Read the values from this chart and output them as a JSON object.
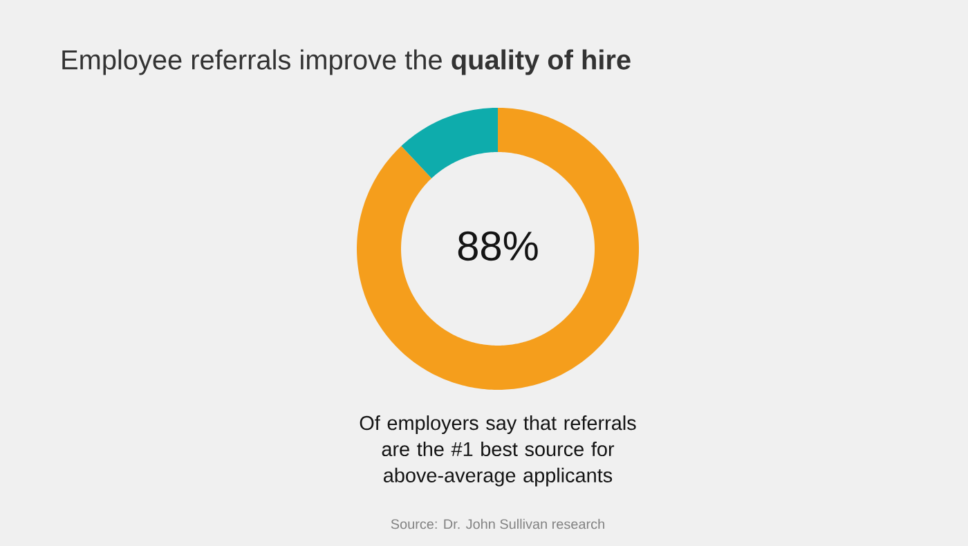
{
  "chart_data": {
    "type": "donut",
    "title": "Employee referrals improve the **quality of hire**",
    "categories": [
      null,
      null
    ],
    "values": [
      88,
      12
    ],
    "colors": [
      "#f59e1c",
      "#0eacac"
    ],
    "annotations": [
      "88%",
      "Of employers say that referrals are the #1 best source for above-average applicants",
      "Source: Dr. John Sullivan research"
    ]
  }
}
